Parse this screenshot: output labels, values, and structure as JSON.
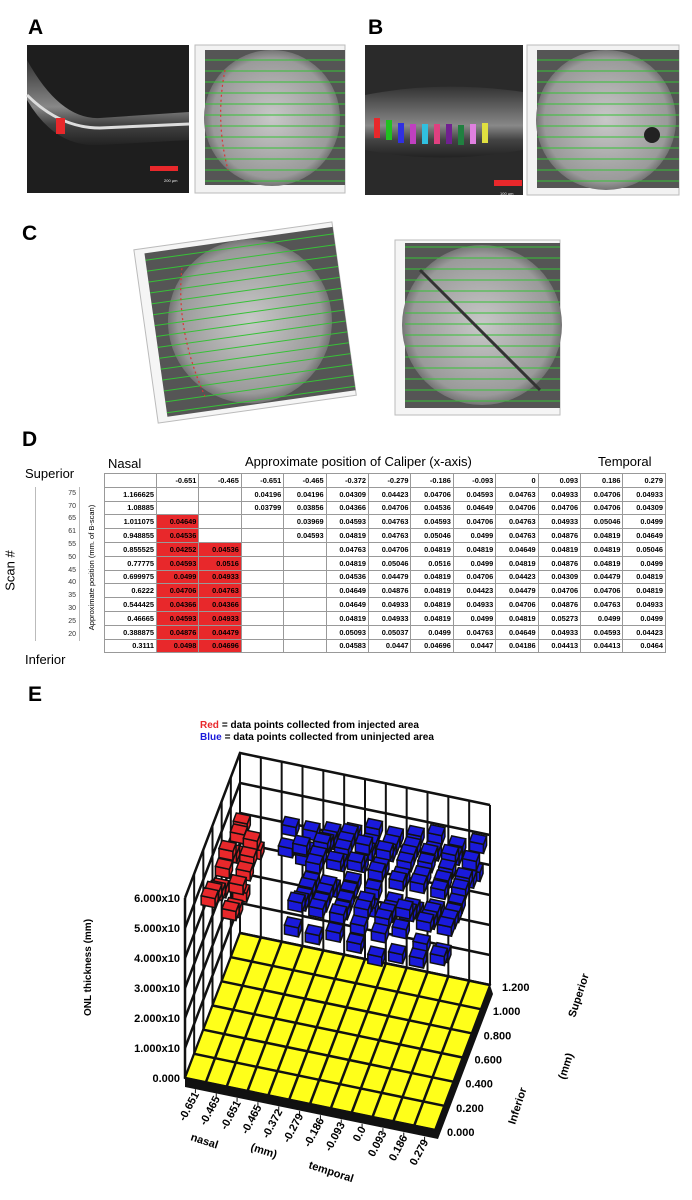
{
  "panels": {
    "A": {
      "label": "A",
      "scale_bar": "200 µm"
    },
    "B": {
      "label": "B",
      "scale_bar": "100 µm"
    },
    "C": {
      "label": "C"
    },
    "D": {
      "label": "D",
      "nasal": "Nasal",
      "title": "Approximate position of Caliper (x-axis)",
      "temporal": "Temporal",
      "superior": "Superior",
      "inferior": "Inferior",
      "scan_label": "Scan #",
      "position_label": "Approximate position (mm. of B-scan)",
      "columns": [
        {
          "value": -0.651,
          "fill": "#e8282b"
        },
        {
          "value": -0.465,
          "fill": "#e8282b"
        },
        {
          "value": -0.651
        },
        {
          "value": -0.465
        },
        {
          "value": -0.372
        },
        {
          "value": -0.279
        },
        {
          "value": -0.186
        },
        {
          "value": -0.093
        },
        {
          "value": 0
        },
        {
          "value": 0.093
        },
        {
          "value": 0.186
        },
        {
          "value": 0.279
        }
      ],
      "rows": [
        {
          "scan": 75,
          "position": 1.166625,
          "cells": [
            null,
            null,
            0.04196,
            0.04196,
            0.04309,
            0.04423,
            0.04706,
            0.04593,
            0.04763,
            0.04933,
            0.04706,
            0.04933
          ]
        },
        {
          "scan": 70,
          "position": 1.08885,
          "cells": [
            null,
            null,
            0.03799,
            0.03856,
            0.04366,
            0.04706,
            0.04536,
            0.04649,
            0.04706,
            0.04706,
            0.04706,
            0.04309
          ]
        },
        {
          "scan": 65,
          "position": 1.011075,
          "cells": [
            0.04649,
            null,
            null,
            0.03969,
            0.04593,
            0.04763,
            0.04593,
            0.04706,
            0.04763,
            0.04933,
            0.05046,
            0.0499
          ]
        },
        {
          "scan": 61,
          "position": 0.948855,
          "cells": [
            0.04536,
            null,
            null,
            0.04593,
            0.04819,
            0.04763,
            0.05046,
            0.0499,
            0.04763,
            0.04876,
            0.04819,
            0.04649
          ]
        },
        {
          "scan": 55,
          "position": 0.855525,
          "cells": [
            0.04252,
            0.04536,
            null,
            null,
            0.04763,
            0.04706,
            0.04819,
            0.04819,
            0.04649,
            0.04819,
            0.04819,
            0.05046
          ]
        },
        {
          "scan": 50,
          "position": 0.77775,
          "cells": [
            0.04593,
            0.0516,
            null,
            null,
            0.04819,
            0.05046,
            0.0516,
            0.0499,
            0.04819,
            0.04876,
            0.04819,
            0.0499
          ]
        },
        {
          "scan": 45,
          "position": 0.699975,
          "cells": [
            0.0499,
            0.04933,
            null,
            null,
            0.04536,
            0.04479,
            0.04819,
            0.04706,
            0.04423,
            0.04309,
            0.04479,
            0.04819
          ]
        },
        {
          "scan": 40,
          "position": 0.6222,
          "cells": [
            0.04706,
            0.04763,
            null,
            null,
            0.04649,
            0.04876,
            0.04819,
            0.04423,
            0.04479,
            0.04706,
            0.04706,
            0.04819
          ]
        },
        {
          "scan": 35,
          "position": 0.544425,
          "cells": [
            0.04366,
            0.04366,
            null,
            null,
            0.04649,
            0.04933,
            0.04819,
            0.04933,
            0.04706,
            0.04876,
            0.04763,
            0.04933
          ]
        },
        {
          "scan": 30,
          "position": 0.46665,
          "cells": [
            0.04593,
            0.04933,
            null,
            null,
            0.04819,
            0.04933,
            0.04819,
            0.0499,
            0.04819,
            0.05273,
            0.0499,
            0.0499
          ]
        },
        {
          "scan": 25,
          "position": 0.388875,
          "cells": [
            0.04876,
            0.04479,
            null,
            null,
            0.05093,
            0.05037,
            0.0499,
            0.04763,
            0.04649,
            0.04933,
            0.04593,
            0.04423
          ]
        },
        {
          "scan": 20,
          "position": 0.3111,
          "cells": [
            0.0498,
            0.04696,
            null,
            null,
            0.04583,
            0.0447,
            0.04696,
            0.0447,
            0.04186,
            0.04413,
            0.04413,
            0.0464
          ]
        }
      ]
    },
    "E": {
      "label": "E",
      "legend": [
        {
          "key": "Red",
          "color": "#e8282b",
          "text": "= data points collected from injected area"
        },
        {
          "key": "Blue",
          "color": "#1a1adb",
          "text": "= data points collected from uninjected area"
        }
      ],
      "z_label": "ONL thickness (mm)",
      "zticks": [
        {
          "value": 0,
          "label": "0.000"
        },
        {
          "value": 0.01,
          "label": "1.000x10"
        },
        {
          "value": 0.02,
          "label": "2.000x10"
        },
        {
          "value": 0.03,
          "label": "3.000x10"
        },
        {
          "value": 0.04,
          "label": "4.000x10"
        },
        {
          "value": 0.05,
          "label": "5.000x10"
        },
        {
          "value": 0.06,
          "label": "6.000x10"
        }
      ],
      "xticks": [
        -0.651,
        -0.465,
        -0.651,
        -0.465,
        -0.372,
        -0.279,
        -0.186,
        -0.093,
        {
          "value": 0,
          "label": "0.0"
        },
        0.093,
        0.186,
        0.279
      ],
      "x_labels": [
        "nasal",
        "(mm)",
        "temporal"
      ],
      "yticks": [
        {
          "value": 0,
          "label": "0.000"
        },
        {
          "value": 0.2,
          "label": "0.200"
        },
        {
          "value": 0.4,
          "label": "0.400"
        },
        {
          "value": 0.6,
          "label": "0.600"
        },
        {
          "value": 0.8,
          "label": "0.800"
        },
        {
          "value": 1.0,
          "label": "1.000"
        },
        {
          "value": 1.2,
          "label": "1.200"
        }
      ],
      "y_labels": [
        "Inferior",
        "(mm)",
        "Superior"
      ],
      "floor_color": "#ffff1a"
    }
  }
}
